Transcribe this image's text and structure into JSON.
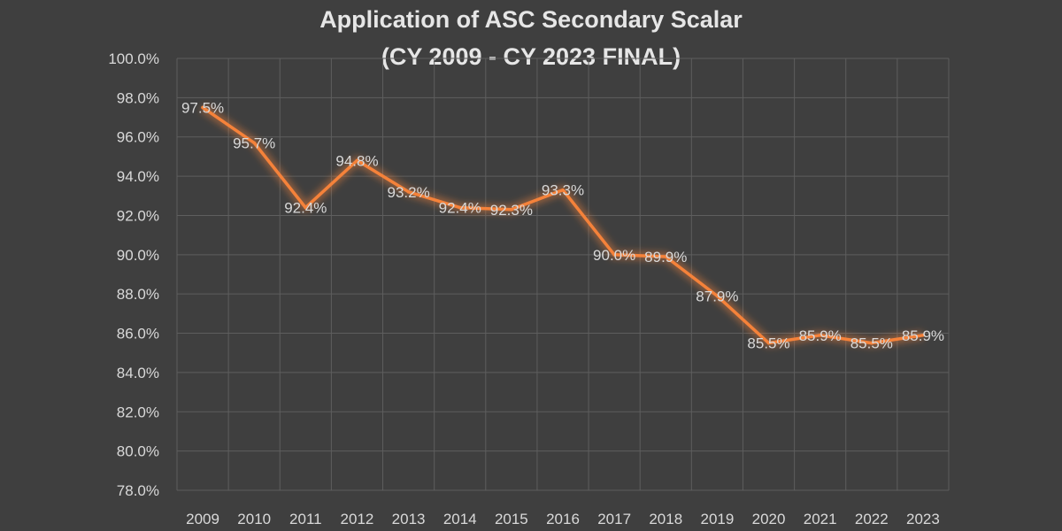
{
  "colors": {
    "background": "#3f3f3f",
    "line": "#f5823a",
    "glow": "#f5823a",
    "text": "#d9d9d9",
    "grid": "#5e5e5e"
  },
  "chart_data": {
    "type": "line",
    "title": "Application of ASC Secondary Scalar",
    "subtitle": "(CY 2009 - CY 2023 FINAL)",
    "xlabel": "",
    "ylabel": "",
    "categories": [
      "2009",
      "2010",
      "2011",
      "2012",
      "2013",
      "2014",
      "2015",
      "2016",
      "2017",
      "2018",
      "2019",
      "2020",
      "2021",
      "2022",
      "2023"
    ],
    "series": [
      {
        "name": "ASC Secondary Scalar",
        "values": [
          97.5,
          95.7,
          92.4,
          94.8,
          93.2,
          92.4,
          92.3,
          93.3,
          90.0,
          89.9,
          87.9,
          85.5,
          85.9,
          85.5,
          85.9
        ],
        "labels": [
          "97.5%",
          "95.7%",
          "92.4%",
          "94.8%",
          "93.2%",
          "92.4%",
          "92.3%",
          "93.3%",
          "90.0%",
          "89.9%",
          "87.9%",
          "85.5%",
          "85.9%",
          "85.5%",
          "85.9%"
        ]
      }
    ],
    "ylim": [
      78.0,
      100.0
    ],
    "yticks": [
      78.0,
      80.0,
      82.0,
      84.0,
      86.0,
      88.0,
      90.0,
      92.0,
      94.0,
      96.0,
      98.0,
      100.0
    ],
    "ytick_labels": [
      "78.0%",
      "80.0%",
      "82.0%",
      "84.0%",
      "86.0%",
      "88.0%",
      "90.0%",
      "92.0%",
      "94.0%",
      "96.0%",
      "98.0%",
      "100.0%"
    ],
    "grid": true,
    "legend": "none"
  }
}
